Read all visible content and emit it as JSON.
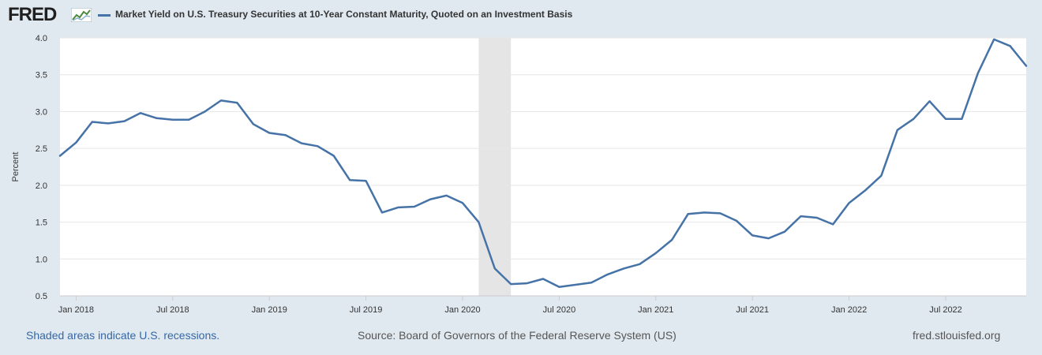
{
  "header": {
    "logo_text": "FRED",
    "logo_icon": "line-chart-icon",
    "series_name": "Market Yield on U.S. Treasury Securities at 10-Year Constant Maturity, Quoted on an Investment Basis",
    "series_color": "#4572a7"
  },
  "footer": {
    "recession_note": "Shaded areas indicate U.S. recessions.",
    "source": "Source: Board of Governors of the Federal Reserve System (US)",
    "site": "fred.stlouisfed.org"
  },
  "chart_data": {
    "type": "line",
    "ylabel": "Percent",
    "ylim": [
      0.5,
      4.0
    ],
    "yticks": [
      "0.5",
      "1.0",
      "1.5",
      "2.0",
      "2.5",
      "3.0",
      "3.5",
      "4.0"
    ],
    "xticks": [
      "Jan 2018",
      "Jul 2018",
      "Jan 2019",
      "Jul 2019",
      "Jan 2020",
      "Jul 2020",
      "Jan 2021",
      "Jul 2021",
      "Jan 2022",
      "Jul 2022"
    ],
    "grid": true,
    "recession_shading": {
      "start": "2020-02",
      "end": "2020-04",
      "color": "#e5e5e5"
    },
    "series": [
      {
        "color": "#4572a7",
        "x": [
          "2017-12",
          "2018-01",
          "2018-02",
          "2018-03",
          "2018-04",
          "2018-05",
          "2018-06",
          "2018-07",
          "2018-08",
          "2018-09",
          "2018-10",
          "2018-11",
          "2018-12",
          "2019-01",
          "2019-02",
          "2019-03",
          "2019-04",
          "2019-05",
          "2019-06",
          "2019-07",
          "2019-08",
          "2019-09",
          "2019-10",
          "2019-11",
          "2019-12",
          "2020-01",
          "2020-02",
          "2020-03",
          "2020-04",
          "2020-05",
          "2020-06",
          "2020-07",
          "2020-08",
          "2020-09",
          "2020-10",
          "2020-11",
          "2020-12",
          "2021-01",
          "2021-02",
          "2021-03",
          "2021-04",
          "2021-05",
          "2021-06",
          "2021-07",
          "2021-08",
          "2021-09",
          "2021-10",
          "2021-11",
          "2021-12",
          "2022-01",
          "2022-02",
          "2022-03",
          "2022-04",
          "2022-05",
          "2022-06",
          "2022-07",
          "2022-08",
          "2022-09",
          "2022-10",
          "2022-11",
          "2022-12"
        ],
        "values": [
          2.4,
          2.58,
          2.86,
          2.84,
          2.87,
          2.98,
          2.91,
          2.89,
          2.89,
          3.0,
          3.15,
          3.12,
          2.83,
          2.71,
          2.68,
          2.57,
          2.53,
          2.4,
          2.07,
          2.06,
          1.63,
          1.7,
          1.71,
          1.81,
          1.86,
          1.76,
          1.5,
          0.87,
          0.66,
          0.67,
          0.73,
          0.62,
          0.65,
          0.68,
          0.79,
          0.87,
          0.93,
          1.08,
          1.26,
          1.61,
          1.63,
          1.62,
          1.52,
          1.32,
          1.28,
          1.37,
          1.58,
          1.56,
          1.47,
          1.76,
          1.93,
          2.13,
          2.75,
          2.9,
          3.14,
          2.9,
          2.9,
          3.52,
          3.98,
          3.89,
          3.62
        ]
      }
    ]
  }
}
